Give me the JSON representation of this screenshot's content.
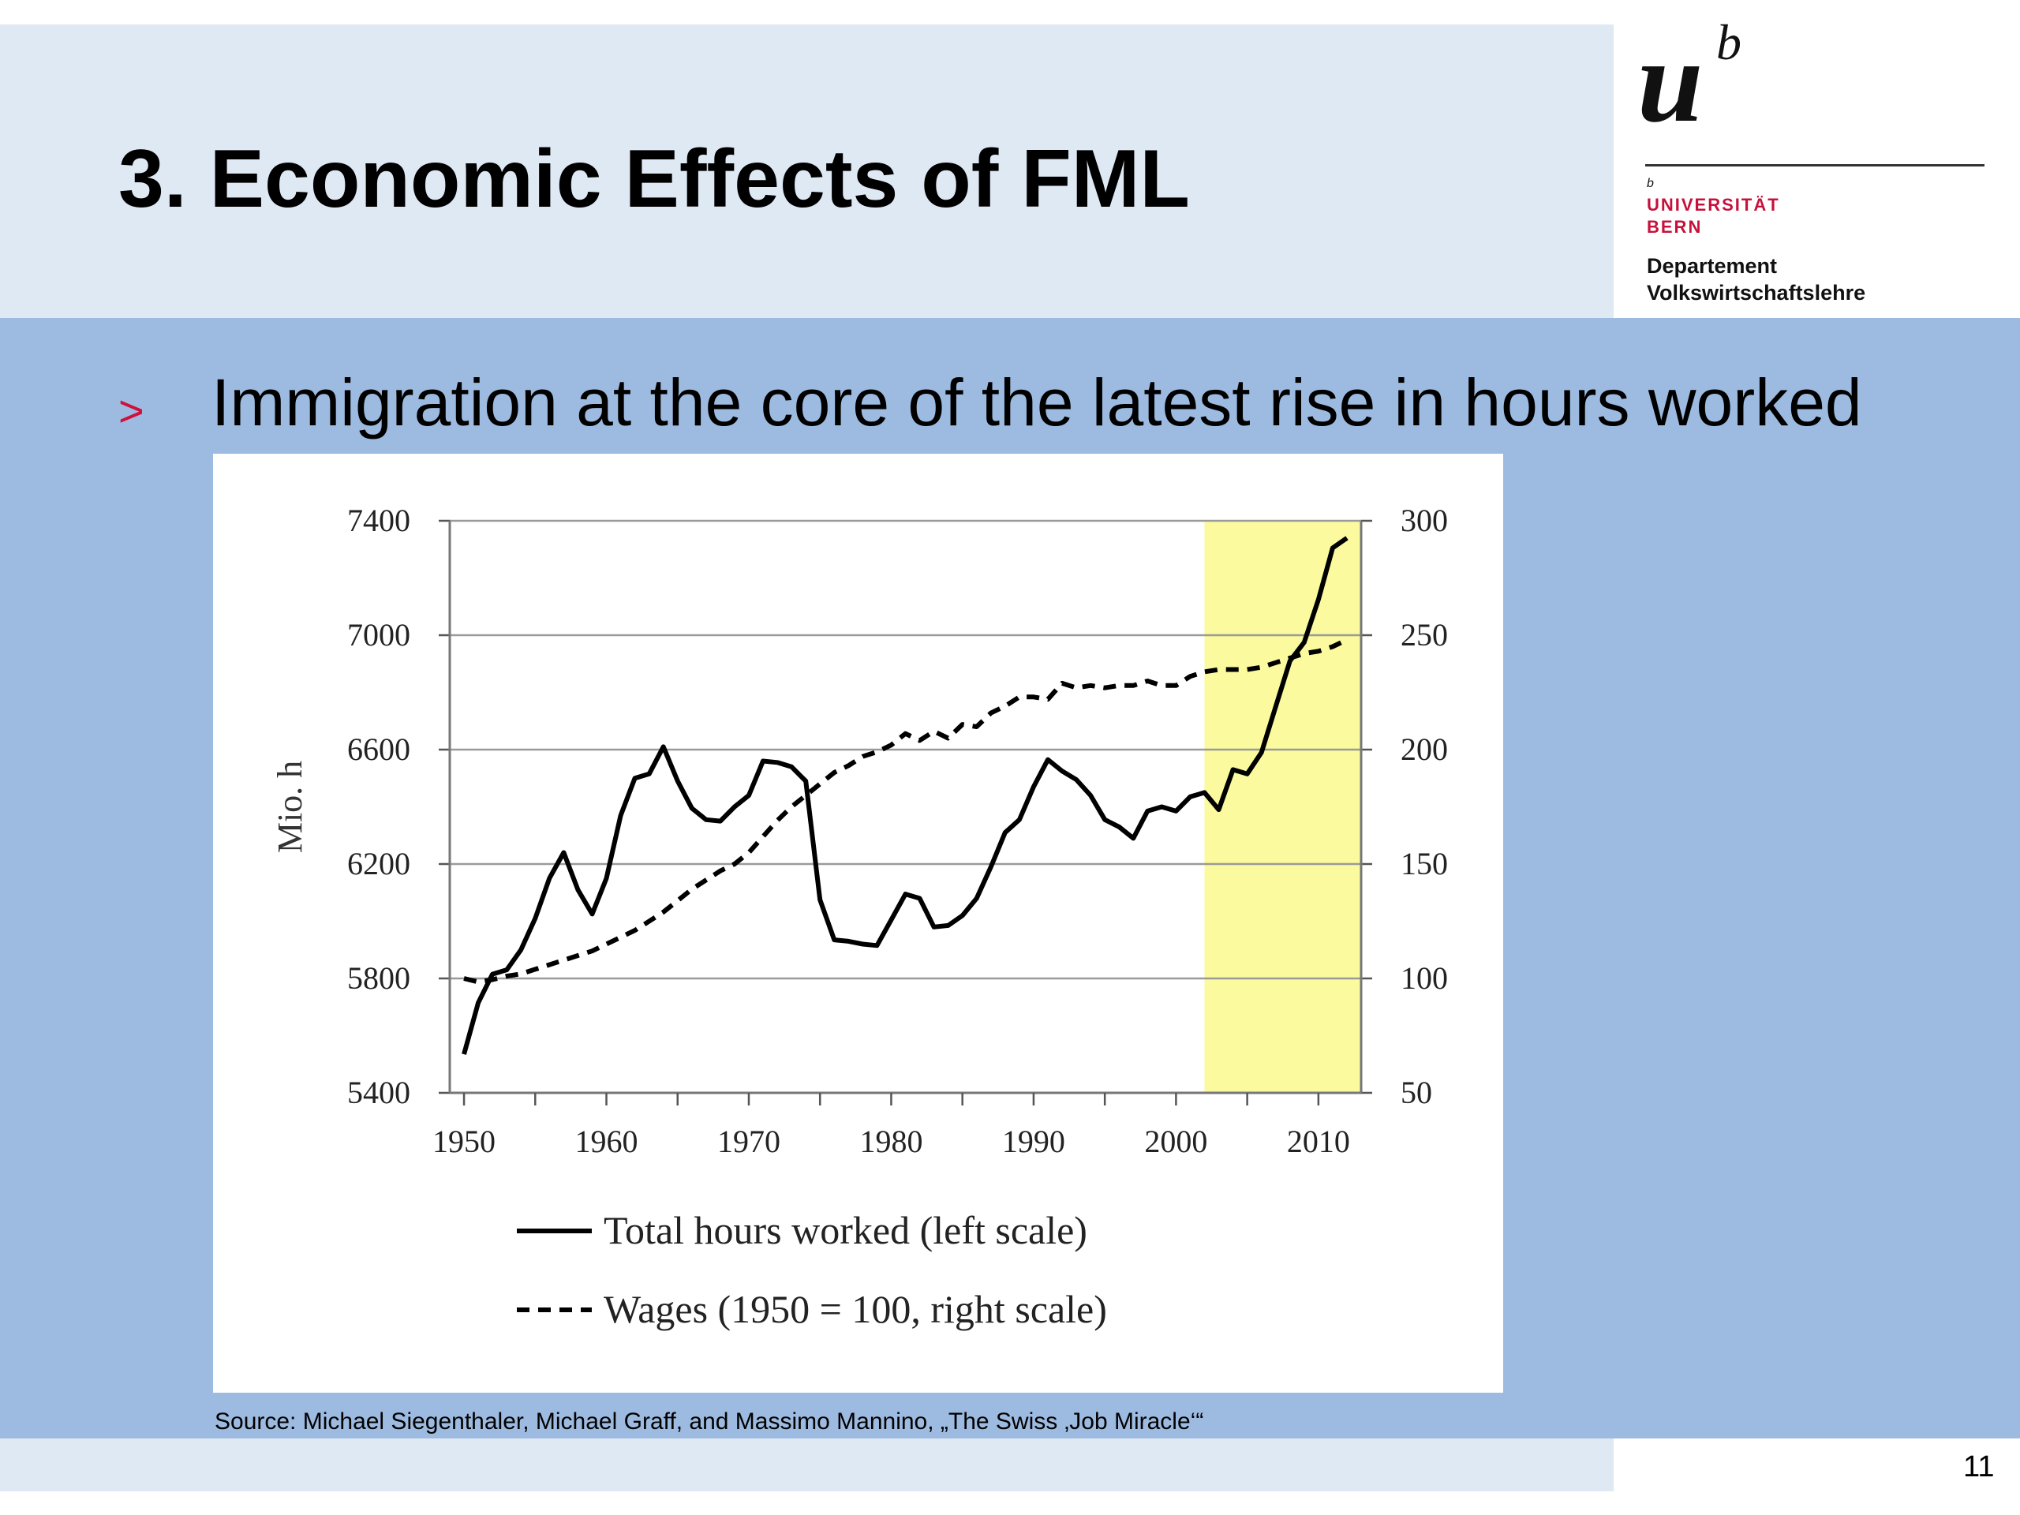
{
  "slide": {
    "title": "3. Economic Effects of FML",
    "bullet_marker": ">",
    "bullet": "Immigration at the core of the latest rise in hours worked",
    "source": "Source: Michael Siegenthaler, Michael Graff, and Massimo Mannino, „The Swiss ‚Job Miracle‘“",
    "page_number": "11"
  },
  "logo": {
    "mark_u": "u",
    "mark_b": "b",
    "small_b": "b",
    "university_line1": "UNIVERSITÄT",
    "university_line2": "BERN",
    "department_line1": "Departement",
    "department_line2": "Volkswirtschaftslehre"
  },
  "colors": {
    "header_band": "#dfe9f4",
    "content_band": "#9dbbe0",
    "bullet_marker": "#d0103a",
    "university_red": "#c8103c",
    "highlight": "#fbfa9e"
  },
  "chart_data": {
    "type": "line",
    "ylabel": "Mio. h",
    "xlim": [
      1949,
      2013
    ],
    "ylim_left": [
      5400,
      7400
    ],
    "ylim_right": [
      50,
      300
    ],
    "x_ticks": [
      1950,
      1960,
      1970,
      1980,
      1990,
      2000,
      2010
    ],
    "left_ticks": [
      5400,
      5800,
      6200,
      6600,
      7000,
      7400
    ],
    "right_ticks": [
      50,
      100,
      150,
      200,
      250,
      300
    ],
    "grid": "horizontal",
    "highlight_range": [
      2002,
      2013
    ],
    "series": [
      {
        "name": "Total hours worked (left scale)",
        "axis": "left",
        "style": "solid",
        "x": [
          1950,
          1951,
          1952,
          1953,
          1954,
          1955,
          1956,
          1957,
          1958,
          1959,
          1960,
          1961,
          1962,
          1963,
          1964,
          1965,
          1966,
          1967,
          1968,
          1969,
          1970,
          1971,
          1972,
          1973,
          1974,
          1975,
          1976,
          1977,
          1978,
          1979,
          1980,
          1981,
          1982,
          1983,
          1984,
          1985,
          1986,
          1987,
          1988,
          1989,
          1990,
          1991,
          1992,
          1993,
          1994,
          1995,
          1996,
          1997,
          1998,
          1999,
          2000,
          2001,
          2002,
          2003,
          2004,
          2005,
          2006,
          2007,
          2008,
          2009,
          2010,
          2011,
          2012
        ],
        "values": [
          5535,
          5715,
          5815,
          5830,
          5900,
          6010,
          6150,
          6240,
          6110,
          6025,
          6150,
          6370,
          6500,
          6515,
          6610,
          6490,
          6395,
          6355,
          6350,
          6400,
          6440,
          6560,
          6555,
          6540,
          6490,
          6075,
          5935,
          5930,
          5920,
          5915,
          6005,
          6095,
          6080,
          5980,
          5985,
          6020,
          6080,
          6190,
          6310,
          6355,
          6470,
          6565,
          6525,
          6495,
          6440,
          6355,
          6330,
          6290,
          6385,
          6400,
          6385,
          6435,
          6450,
          6390,
          6530,
          6515,
          6590,
          6750,
          6910,
          6975,
          7125,
          7305,
          7340
        ]
      },
      {
        "name": "Wages (1950 = 100, right scale)",
        "axis": "right",
        "style": "dashed",
        "x": [
          1950,
          1951,
          1952,
          1953,
          1954,
          1955,
          1956,
          1957,
          1958,
          1959,
          1960,
          1961,
          1962,
          1963,
          1964,
          1965,
          1966,
          1967,
          1968,
          1969,
          1970,
          1971,
          1972,
          1973,
          1974,
          1975,
          1976,
          1977,
          1978,
          1979,
          1980,
          1981,
          1982,
          1983,
          1984,
          1985,
          1986,
          1987,
          1988,
          1989,
          1990,
          1991,
          1992,
          1993,
          1994,
          1995,
          1996,
          1997,
          1998,
          1999,
          2000,
          2001,
          2002,
          2003,
          2004,
          2005,
          2006,
          2007,
          2008,
          2009,
          2010,
          2011,
          2012
        ],
        "values": [
          100,
          98.5,
          99.5,
          101,
          102,
          104,
          106,
          108,
          110,
          112,
          115,
          118,
          121,
          125,
          129,
          134,
          139,
          143,
          147,
          150,
          155,
          162,
          169,
          175,
          180,
          185,
          190,
          193,
          197,
          199,
          202,
          207,
          204,
          208,
          205,
          211,
          210,
          216,
          219,
          223,
          223,
          222,
          229,
          227,
          228,
          227,
          228,
          228,
          230,
          228,
          228,
          232,
          234,
          235,
          235,
          235,
          236,
          238,
          240,
          242,
          243,
          245,
          248
        ]
      }
    ]
  }
}
